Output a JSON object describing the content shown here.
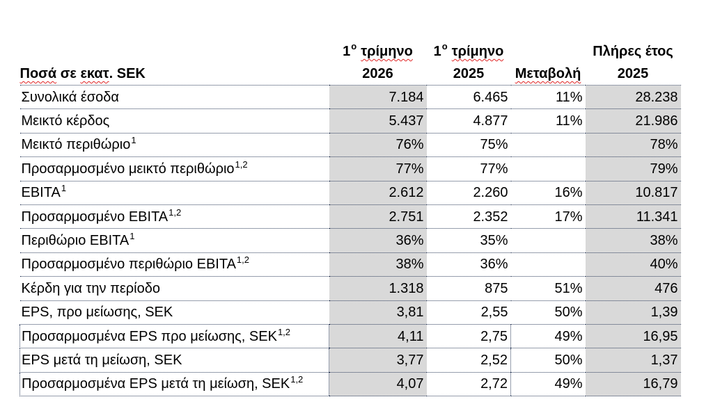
{
  "colors": {
    "shaded_columns": "#d9d9d9",
    "row_rules": "#2f3e5c",
    "spellcheck_underline": "#e02424"
  },
  "table": {
    "header": {
      "label_parts": [
        "Ποσά",
        " σε ",
        "εκατ",
        ". SEK"
      ],
      "q1_2026": {
        "number": "1",
        "ordinal": "ο",
        "word": "τρίμηνο",
        "year": "2026"
      },
      "q1_2025": {
        "number": "1",
        "ordinal": "ο",
        "word": "τρίμηνο",
        "year": "2025"
      },
      "change": "Μεταβολή",
      "full_year_2025": {
        "title": "Πλήρες έτος",
        "year": "2025"
      }
    },
    "rows": [
      {
        "label": "Συνολικά έσοδα",
        "q1_2026": "7.184",
        "q1_2025": "6.465",
        "change": "11%",
        "full_year_2025": "28.238"
      },
      {
        "label": "Μεικτό κέρδος",
        "q1_2026": "5.437",
        "q1_2025": "4.877",
        "change": "11%",
        "full_year_2025": "21.986"
      },
      {
        "label": "Μεικτό περιθώριο",
        "sup": "1",
        "q1_2026": "76%",
        "q1_2025": "75%",
        "full_year_2025": "78%"
      },
      {
        "label": "Προσαρμοσμένο μεικτό περιθώριο",
        "sup": "1,2",
        "q1_2026": "77%",
        "q1_2025": "77%",
        "full_year_2025": "79%"
      },
      {
        "label": "EBITA",
        "sup": "1",
        "q1_2026": "2.612",
        "q1_2025": "2.260",
        "change": "16%",
        "full_year_2025": "10.817"
      },
      {
        "label": "Προσαρμοσμένο EBITA",
        "sup": "1,2",
        "q1_2026": "2.751",
        "q1_2025": "2.352",
        "change": "17%",
        "full_year_2025": "11.341"
      },
      {
        "label": "Περιθώριο EBITA",
        "sup": "1",
        "q1_2026": "36%",
        "q1_2025": "35%",
        "full_year_2025": "38%"
      },
      {
        "label": "Προσαρμοσμένο περιθώριο EBITA",
        "sup": "1,2",
        "q1_2026": "38%",
        "q1_2025": "36%",
        "full_year_2025": "40%"
      },
      {
        "label": "Κέρδη για την περίοδο",
        "q1_2026": "1.318",
        "q1_2025": "875",
        "change": "51%",
        "full_year_2025": "476"
      },
      {
        "label": "EPS, προ μείωσης, SEK",
        "q1_2026": "3,81",
        "q1_2025": "2,55",
        "change": "50%",
        "full_year_2025": "1,39"
      },
      {
        "label": "Προσαρμοσμένα EPS προ μείωσης, SEK",
        "sup": "1,2",
        "q1_2026": "4,11",
        "q1_2025": "2,75",
        "change": "49%",
        "full_year_2025": "16,95"
      },
      {
        "label": "EPS μετά τη μείωση, SEK",
        "q1_2026": "3,77",
        "q1_2025": "2,52",
        "change": "50%",
        "full_year_2025": "1,37"
      },
      {
        "label": "Προσαρμοσμένα EPS μετά τη μείωση, SEK",
        "sup": "1,2",
        "q1_2026": "4,07",
        "q1_2025": "2,72",
        "change": "49%",
        "full_year_2025": "16,79"
      }
    ]
  }
}
